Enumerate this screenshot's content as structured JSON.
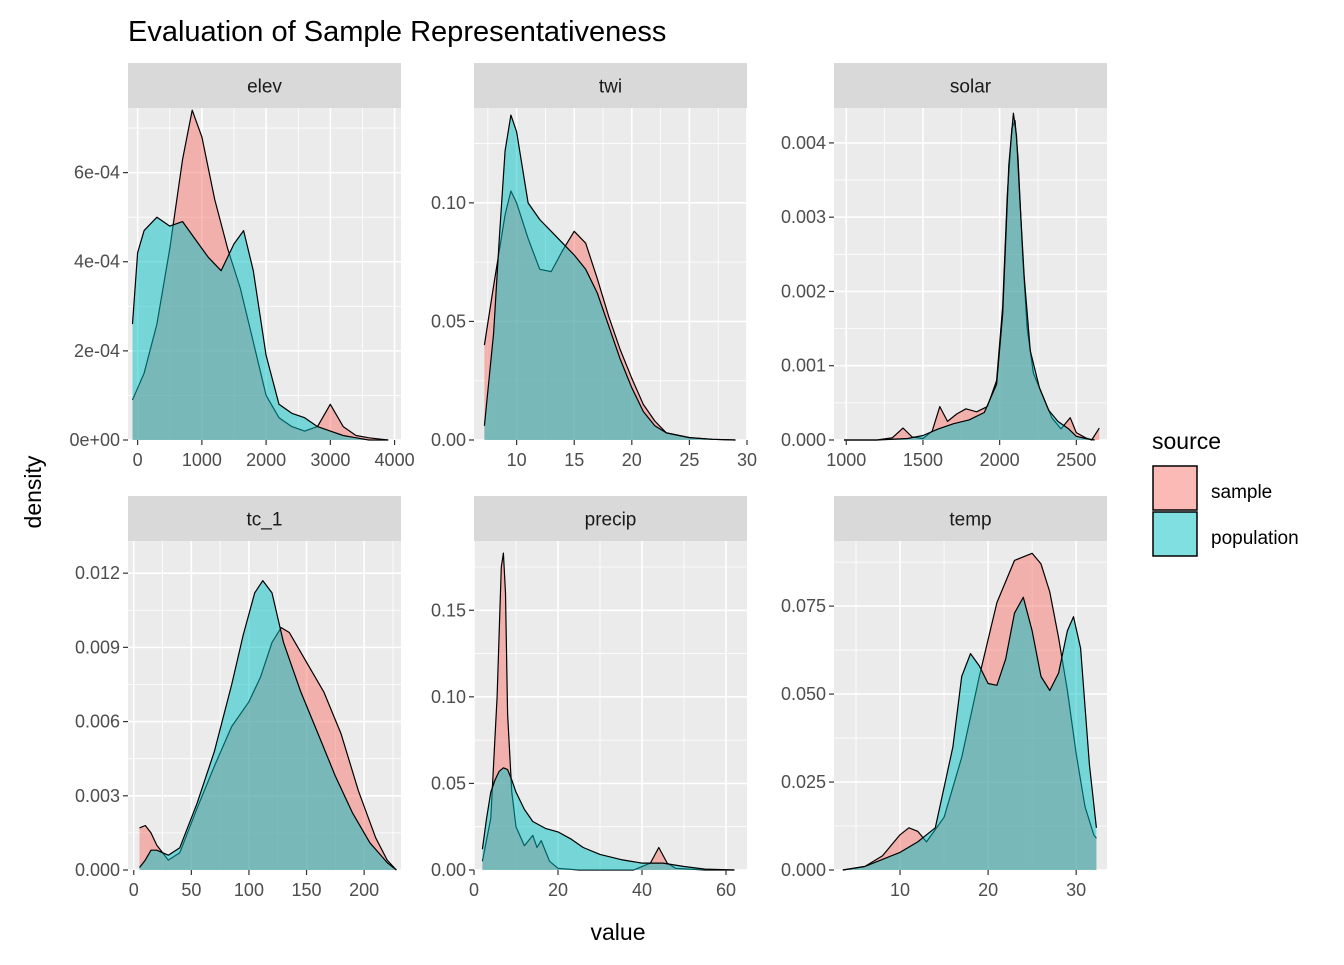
{
  "title": "Evaluation of Sample Representativeness",
  "xlabel": "value",
  "ylabel": "density",
  "legend": {
    "title": "source",
    "placement": "right",
    "entries": [
      {
        "name": "sample",
        "color": "#F8766D"
      },
      {
        "name": "population",
        "color": "#00BFC4"
      }
    ]
  },
  "colors": {
    "sample": "#F8766D",
    "population": "#00BFC4",
    "panel_bg": "#EBEBEB",
    "strip_bg": "#D9D9D9",
    "grid": "#FFFFFF"
  },
  "chart_data": [
    {
      "type": "area",
      "facet": "elev",
      "xlim": [
        -150,
        4100
      ],
      "ylim": [
        0,
        0.000745
      ],
      "x_ticks": [
        0,
        1000,
        2000,
        3000,
        4000
      ],
      "x_tick_labels": [
        "0",
        "1000",
        "2000",
        "3000",
        "4000"
      ],
      "y_ticks": [
        0,
        0.0002,
        0.0004,
        0.0006
      ],
      "y_tick_labels": [
        "0e+00",
        "2e-04",
        "4e-04",
        "6e-04"
      ],
      "series": [
        {
          "name": "sample",
          "x": [
            -80,
            100,
            300,
            500,
            700,
            850,
            1000,
            1200,
            1400,
            1600,
            1800,
            2000,
            2200,
            2400,
            2600,
            2800,
            3000,
            3200,
            3400,
            3600,
            3900
          ],
          "y": [
            9e-05,
            0.00015,
            0.00026,
            0.00043,
            0.00063,
            0.00074,
            0.00068,
            0.00054,
            0.00043,
            0.00034,
            0.00022,
            0.0001,
            5e-05,
            3e-05,
            2e-05,
            3e-05,
            8e-05,
            3e-05,
            1e-05,
            5e-06,
            0.0
          ]
        },
        {
          "name": "population",
          "x": [
            -80,
            0,
            100,
            300,
            500,
            700,
            900,
            1100,
            1300,
            1500,
            1650,
            1800,
            2000,
            2200,
            2400,
            2600,
            2800,
            3000,
            3200,
            3400,
            3600,
            3900
          ],
          "y": [
            0.00026,
            0.00042,
            0.00047,
            0.0005,
            0.00048,
            0.00049,
            0.00045,
            0.00041,
            0.00038,
            0.00044,
            0.00047,
            0.00038,
            0.00019,
            8e-05,
            6e-05,
            5e-05,
            3e-05,
            2e-05,
            1e-05,
            5e-06,
            0.0,
            0.0
          ]
        }
      ]
    },
    {
      "type": "area",
      "facet": "twi",
      "xlim": [
        6.3,
        30.0
      ],
      "ylim": [
        0,
        0.14
      ],
      "x_ticks": [
        10,
        15,
        20,
        25,
        30
      ],
      "x_tick_labels": [
        "10",
        "15",
        "20",
        "25",
        "30"
      ],
      "y_ticks": [
        0,
        0.05,
        0.1
      ],
      "y_tick_labels": [
        "0.00",
        "0.05",
        "0.10"
      ],
      "series": [
        {
          "name": "sample",
          "x": [
            7.2,
            8,
            9,
            9.5,
            10,
            11,
            12,
            13,
            14,
            15,
            16,
            17,
            18,
            19,
            20,
            21,
            22,
            23,
            25,
            27,
            29
          ],
          "y": [
            0.04,
            0.065,
            0.095,
            0.105,
            0.1,
            0.085,
            0.072,
            0.071,
            0.08,
            0.088,
            0.083,
            0.068,
            0.052,
            0.038,
            0.026,
            0.015,
            0.008,
            0.003,
            0.001,
            0.0003,
            0.0
          ]
        },
        {
          "name": "population",
          "x": [
            7.2,
            8,
            8.5,
            9,
            9.5,
            10,
            11,
            12,
            13,
            14,
            15,
            16,
            17,
            18,
            19,
            20,
            21,
            22,
            23,
            25,
            27,
            29
          ],
          "y": [
            0.006,
            0.045,
            0.085,
            0.122,
            0.137,
            0.13,
            0.1,
            0.093,
            0.088,
            0.083,
            0.078,
            0.072,
            0.062,
            0.048,
            0.034,
            0.022,
            0.012,
            0.006,
            0.003,
            0.001,
            0.0003,
            0.0
          ]
        }
      ]
    },
    {
      "type": "area",
      "facet": "solar",
      "xlim": [
        920,
        2700
      ],
      "ylim": [
        0,
        0.00447
      ],
      "x_ticks": [
        1000,
        1500,
        2000,
        2500
      ],
      "x_tick_labels": [
        "1000",
        "1500",
        "2000",
        "2500"
      ],
      "y_ticks": [
        0,
        0.001,
        0.002,
        0.003,
        0.004
      ],
      "y_tick_labels": [
        "0.000",
        "0.001",
        "0.002",
        "0.003",
        "0.004"
      ],
      "series": [
        {
          "name": "sample",
          "x": [
            985,
            1200,
            1300,
            1370,
            1430,
            1500,
            1560,
            1610,
            1660,
            1720,
            1780,
            1850,
            1920,
            1980,
            2020,
            2050,
            2080,
            2100,
            2120,
            2150,
            2180,
            2220,
            2280,
            2340,
            2400,
            2460,
            2500,
            2560,
            2600,
            2650
          ],
          "y": [
            0.0,
            0.0,
            3e-05,
            0.00016,
            4e-05,
            2e-05,
            0.00012,
            0.00045,
            0.00025,
            0.00035,
            0.00042,
            0.00038,
            0.00045,
            0.0008,
            0.0018,
            0.0033,
            0.0042,
            0.0043,
            0.0038,
            0.0025,
            0.0015,
            0.0009,
            0.0006,
            0.0003,
            0.00015,
            0.0003,
            0.0001,
            3e-05,
            0.0,
            0.00016
          ]
        },
        {
          "name": "population",
          "x": [
            985,
            1200,
            1400,
            1500,
            1600,
            1700,
            1800,
            1900,
            1980,
            2020,
            2060,
            2090,
            2110,
            2130,
            2160,
            2200,
            2260,
            2320,
            2380,
            2450,
            2500,
            2560,
            2620
          ],
          "y": [
            0.0,
            0.0,
            2e-05,
            6e-05,
            0.00015,
            0.00022,
            0.00027,
            0.00037,
            0.00075,
            0.0017,
            0.0037,
            0.0044,
            0.0041,
            0.0033,
            0.0022,
            0.0012,
            0.0007,
            0.0004,
            0.00025,
            0.00015,
            5e-05,
            2e-05,
            0.0
          ]
        }
      ]
    },
    {
      "type": "area",
      "facet": "tc_1",
      "xlim": [
        -5,
        232
      ],
      "ylim": [
        0,
        0.0133
      ],
      "x_ticks": [
        0,
        50,
        100,
        150,
        200
      ],
      "x_tick_labels": [
        "0",
        "50",
        "100",
        "150",
        "200"
      ],
      "y_ticks": [
        0,
        0.003,
        0.006,
        0.009,
        0.012
      ],
      "y_tick_labels": [
        "0.000",
        "0.003",
        "0.006",
        "0.009",
        "0.012"
      ],
      "series": [
        {
          "name": "sample",
          "x": [
            5,
            10,
            15,
            20,
            30,
            40,
            55,
            70,
            85,
            100,
            110,
            120,
            128,
            135,
            150,
            165,
            180,
            195,
            210,
            220,
            228
          ],
          "y": [
            0.0017,
            0.0018,
            0.0015,
            0.001,
            0.0004,
            0.0007,
            0.0025,
            0.0042,
            0.0058,
            0.0068,
            0.0078,
            0.0092,
            0.0098,
            0.0096,
            0.0084,
            0.0072,
            0.0055,
            0.0032,
            0.0013,
            0.0004,
            0.0
          ]
        },
        {
          "name": "population",
          "x": [
            5,
            10,
            15,
            20,
            30,
            40,
            55,
            70,
            85,
            95,
            105,
            112,
            120,
            130,
            145,
            160,
            175,
            190,
            205,
            220,
            228
          ],
          "y": [
            0.0001,
            0.0004,
            0.0008,
            0.0008,
            0.0006,
            0.0009,
            0.0027,
            0.0048,
            0.0075,
            0.0095,
            0.0112,
            0.0117,
            0.0112,
            0.0092,
            0.0072,
            0.0055,
            0.0038,
            0.0023,
            0.0011,
            0.0003,
            0.0
          ]
        }
      ]
    },
    {
      "type": "area",
      "facet": "precip",
      "xlim": [
        0,
        65
      ],
      "ylim": [
        0,
        0.19
      ],
      "x_ticks": [
        0,
        20,
        40,
        60
      ],
      "x_tick_labels": [
        "0",
        "20",
        "40",
        "60"
      ],
      "y_ticks": [
        0,
        0.05,
        0.1,
        0.15
      ],
      "y_tick_labels": [
        "0.00",
        "0.05",
        "0.10",
        "0.15"
      ],
      "series": [
        {
          "name": "sample",
          "x": [
            2,
            4,
            5.5,
            6.5,
            7,
            7.5,
            8,
            9,
            10,
            12,
            14,
            15,
            16,
            18,
            20,
            25,
            30,
            38,
            42,
            44,
            46,
            48,
            55,
            62
          ],
          "y": [
            0.005,
            0.03,
            0.1,
            0.175,
            0.183,
            0.16,
            0.09,
            0.045,
            0.025,
            0.014,
            0.02,
            0.013,
            0.017,
            0.005,
            0.001,
            0.0,
            0.0,
            0.0,
            0.004,
            0.013,
            0.004,
            0.001,
            0.0,
            0.0
          ]
        },
        {
          "name": "population",
          "x": [
            2,
            3,
            4,
            5,
            6,
            7,
            8,
            9,
            10,
            12,
            14,
            17,
            20,
            23,
            26,
            30,
            35,
            40,
            45,
            50,
            55,
            62
          ],
          "y": [
            0.012,
            0.03,
            0.045,
            0.052,
            0.057,
            0.059,
            0.058,
            0.052,
            0.045,
            0.035,
            0.028,
            0.024,
            0.022,
            0.018,
            0.013,
            0.009,
            0.006,
            0.004,
            0.004,
            0.002,
            0.0005,
            0.0
          ]
        }
      ]
    },
    {
      "type": "area",
      "facet": "temp",
      "xlim": [
        2.5,
        33.5
      ],
      "ylim": [
        0,
        0.0935
      ],
      "x_ticks": [
        10,
        20,
        30
      ],
      "x_tick_labels": [
        "10",
        "20",
        "30"
      ],
      "y_ticks": [
        0,
        0.025,
        0.05,
        0.075
      ],
      "y_tick_labels": [
        "0.000",
        "0.025",
        "0.050",
        "0.075"
      ],
      "series": [
        {
          "name": "sample",
          "x": [
            3.5,
            6,
            8,
            10,
            11,
            12,
            13,
            15,
            17,
            19,
            21,
            23,
            25,
            26,
            27,
            28,
            29,
            30,
            31,
            32,
            32.3
          ],
          "y": [
            0.0,
            0.001,
            0.004,
            0.01,
            0.012,
            0.011,
            0.008,
            0.015,
            0.032,
            0.055,
            0.076,
            0.088,
            0.09,
            0.087,
            0.079,
            0.066,
            0.051,
            0.033,
            0.018,
            0.01,
            0.009
          ]
        },
        {
          "name": "population",
          "x": [
            3.5,
            6,
            8,
            10,
            12,
            14,
            16,
            17,
            18,
            19,
            20,
            21,
            22,
            23,
            24,
            25,
            26,
            27,
            28,
            29,
            29.7,
            30.5,
            31.5,
            32.3
          ],
          "y": [
            0.0,
            0.001,
            0.003,
            0.005,
            0.008,
            0.012,
            0.035,
            0.055,
            0.0615,
            0.058,
            0.053,
            0.0525,
            0.06,
            0.073,
            0.0775,
            0.068,
            0.055,
            0.051,
            0.056,
            0.068,
            0.072,
            0.063,
            0.03,
            0.012
          ]
        }
      ]
    }
  ]
}
